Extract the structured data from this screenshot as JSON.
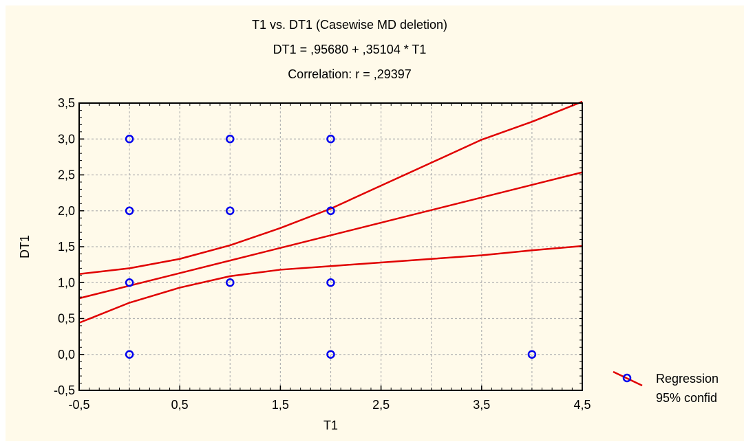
{
  "chart_data": {
    "type": "scatter",
    "title": "T1 vs. DT1 (Casewise MD deletion)",
    "subtitle_lines": [
      "DT1 = ,95680 + ,35104 * T1",
      "Correlation: r = ,29397"
    ],
    "xlabel": "T1",
    "ylabel": "DT1",
    "xlim": [
      -0.5,
      4.5
    ],
    "ylim": [
      -0.5,
      3.5
    ],
    "x_ticks": [
      -0.5,
      0.5,
      1.5,
      2.5,
      3.5,
      4.5
    ],
    "x_tick_labels": [
      "-0,5",
      "0,5",
      "1,5",
      "2,5",
      "3,5",
      "4,5"
    ],
    "y_ticks": [
      -0.5,
      0.0,
      0.5,
      1.0,
      1.5,
      2.0,
      2.5,
      3.0,
      3.5
    ],
    "y_tick_labels": [
      "-0,5",
      "0,0",
      "0,5",
      "1,0",
      "1,5",
      "2,0",
      "2,5",
      "3,0",
      "3,5"
    ],
    "grid": true,
    "points": [
      {
        "x": 0,
        "y": 3
      },
      {
        "x": 1,
        "y": 3
      },
      {
        "x": 2,
        "y": 3
      },
      {
        "x": 0,
        "y": 2
      },
      {
        "x": 1,
        "y": 2
      },
      {
        "x": 2,
        "y": 2
      },
      {
        "x": 0,
        "y": 1
      },
      {
        "x": 1,
        "y": 1
      },
      {
        "x": 2,
        "y": 1
      },
      {
        "x": 0,
        "y": 0
      },
      {
        "x": 2,
        "y": 0
      },
      {
        "x": 4,
        "y": 0
      }
    ],
    "regression": {
      "intercept": 0.9568,
      "slope": 0.35104
    },
    "confidence_band": {
      "x": [
        -0.5,
        0.0,
        0.5,
        1.0,
        1.5,
        2.0,
        2.5,
        3.0,
        3.5,
        4.0,
        4.5
      ],
      "upper": [
        1.12,
        1.2,
        1.33,
        1.52,
        1.76,
        2.03,
        2.35,
        2.67,
        2.99,
        3.24,
        3.52
      ],
      "lower": [
        0.44,
        0.72,
        0.93,
        1.09,
        1.18,
        1.23,
        1.28,
        1.33,
        1.38,
        1.45,
        1.51
      ]
    },
    "legend": {
      "position": "right",
      "entries": [
        "Regression",
        "95% confid"
      ]
    },
    "colors": {
      "background": "#fffaea",
      "points": "#0000ee",
      "lines": "#e00000",
      "grid": "#b4b4b4",
      "axis": "#000000"
    }
  }
}
